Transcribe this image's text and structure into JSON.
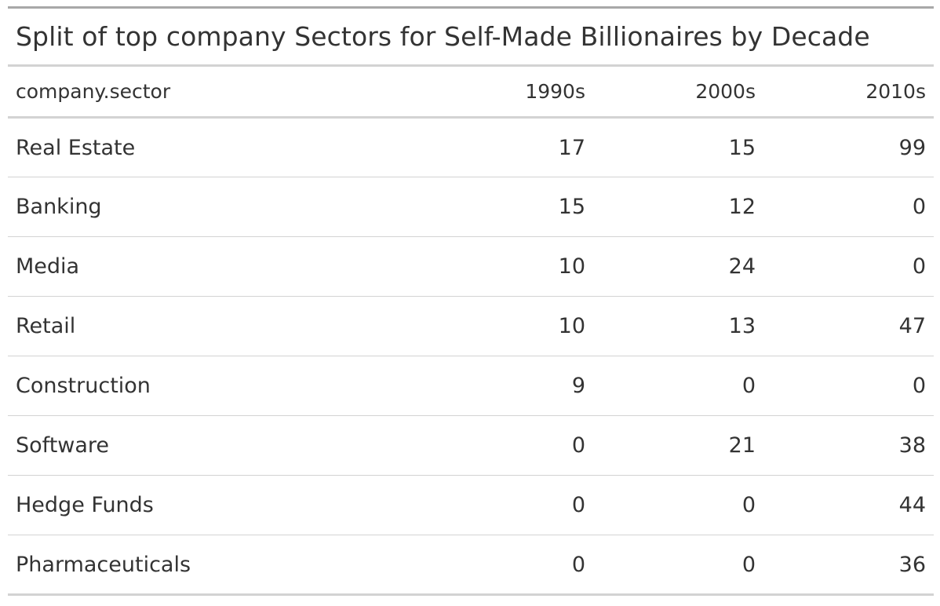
{
  "chart_data": {
    "type": "table",
    "title": "Split of top company Sectors for Self-Made Billionaires by Decade",
    "columns": [
      "company.sector",
      "1990s",
      "2000s",
      "2010s"
    ],
    "rows": [
      {
        "sector": "Real Estate",
        "values": [
          "17",
          "15",
          "99"
        ]
      },
      {
        "sector": "Banking",
        "values": [
          "15",
          "12",
          "0"
        ]
      },
      {
        "sector": "Media",
        "values": [
          "10",
          "24",
          "0"
        ]
      },
      {
        "sector": "Retail",
        "values": [
          "10",
          "13",
          "47"
        ]
      },
      {
        "sector": "Construction",
        "values": [
          "9",
          "0",
          "0"
        ]
      },
      {
        "sector": "Software",
        "values": [
          "0",
          "21",
          "38"
        ]
      },
      {
        "sector": "Hedge Funds",
        "values": [
          "0",
          "0",
          "44"
        ]
      },
      {
        "sector": "Pharmaceuticals",
        "values": [
          "0",
          "0",
          "36"
        ]
      }
    ]
  }
}
